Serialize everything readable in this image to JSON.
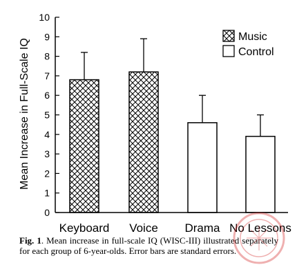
{
  "chart_data": {
    "type": "bar",
    "title": "",
    "ylabel": "Mean Increase in Full-Scale IQ",
    "xlabel": "",
    "ylim": [
      0,
      10
    ],
    "yticks": [
      0,
      1,
      2,
      3,
      4,
      5,
      6,
      7,
      8,
      9,
      10
    ],
    "categories": [
      "Keyboard",
      "Voice",
      "Drama",
      "No Lessons"
    ],
    "values": [
      6.8,
      7.2,
      4.6,
      3.9
    ],
    "error_upper": [
      8.2,
      8.9,
      6.0,
      5.0
    ],
    "group": [
      "Music",
      "Music",
      "Control",
      "Control"
    ],
    "legend": {
      "position": "top-right",
      "entries": [
        {
          "name": "Music",
          "pattern": "crosshatch"
        },
        {
          "name": "Control",
          "pattern": "empty"
        }
      ]
    },
    "grid": false
  },
  "caption": {
    "label": "Fig.   1",
    "text": ". Mean increase in full-scale IQ (WISC-III) illustrated separately for each group of 6-year-olds. Error bars are standard errors."
  }
}
